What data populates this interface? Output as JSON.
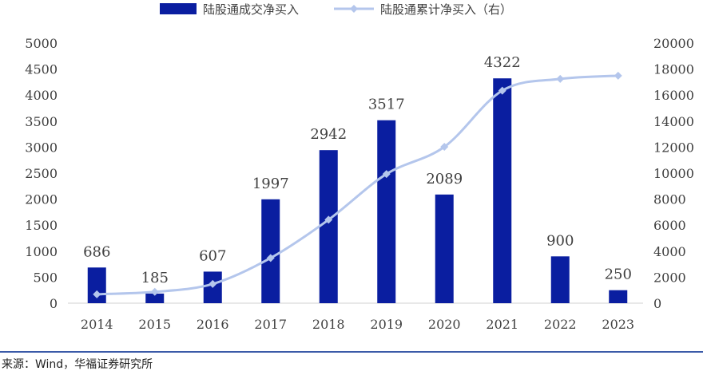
{
  "chart_data": {
    "type": "bar",
    "categories": [
      "2014",
      "2015",
      "2016",
      "2017",
      "2018",
      "2019",
      "2020",
      "2021",
      "2022",
      "2023"
    ],
    "series": [
      {
        "name": "陆股通成交净买入",
        "type": "bar",
        "axis": "left",
        "values": [
          686,
          185,
          607,
          1997,
          2942,
          3517,
          2089,
          4322,
          900,
          250
        ],
        "color": "#0a1ea0"
      },
      {
        "name": "陆股通累计净买入（右）",
        "type": "line",
        "axis": "right",
        "values": [
          686,
          871,
          1478,
          3475,
          6417,
          9934,
          12023,
          16345,
          17245,
          17495
        ],
        "color": "#b4c6ec"
      }
    ],
    "data_labels": [
      "686",
      "185",
      "607",
      "1997",
      "2942",
      "3517",
      "2089",
      "4322",
      "900",
      "250"
    ],
    "y_left": {
      "ylim": [
        0,
        5000
      ],
      "ticks": [
        "0",
        "500",
        "1000",
        "1500",
        "2000",
        "2500",
        "3000",
        "3500",
        "4000",
        "4500",
        "5000"
      ]
    },
    "y_right": {
      "ylim": [
        0,
        20000
      ],
      "ticks": [
        "0",
        "2000",
        "4000",
        "6000",
        "8000",
        "10000",
        "12000",
        "14000",
        "16000",
        "18000",
        "20000"
      ]
    },
    "legend_position": "top",
    "grid": false
  },
  "source": "来源：Wind，华福证券研究所"
}
